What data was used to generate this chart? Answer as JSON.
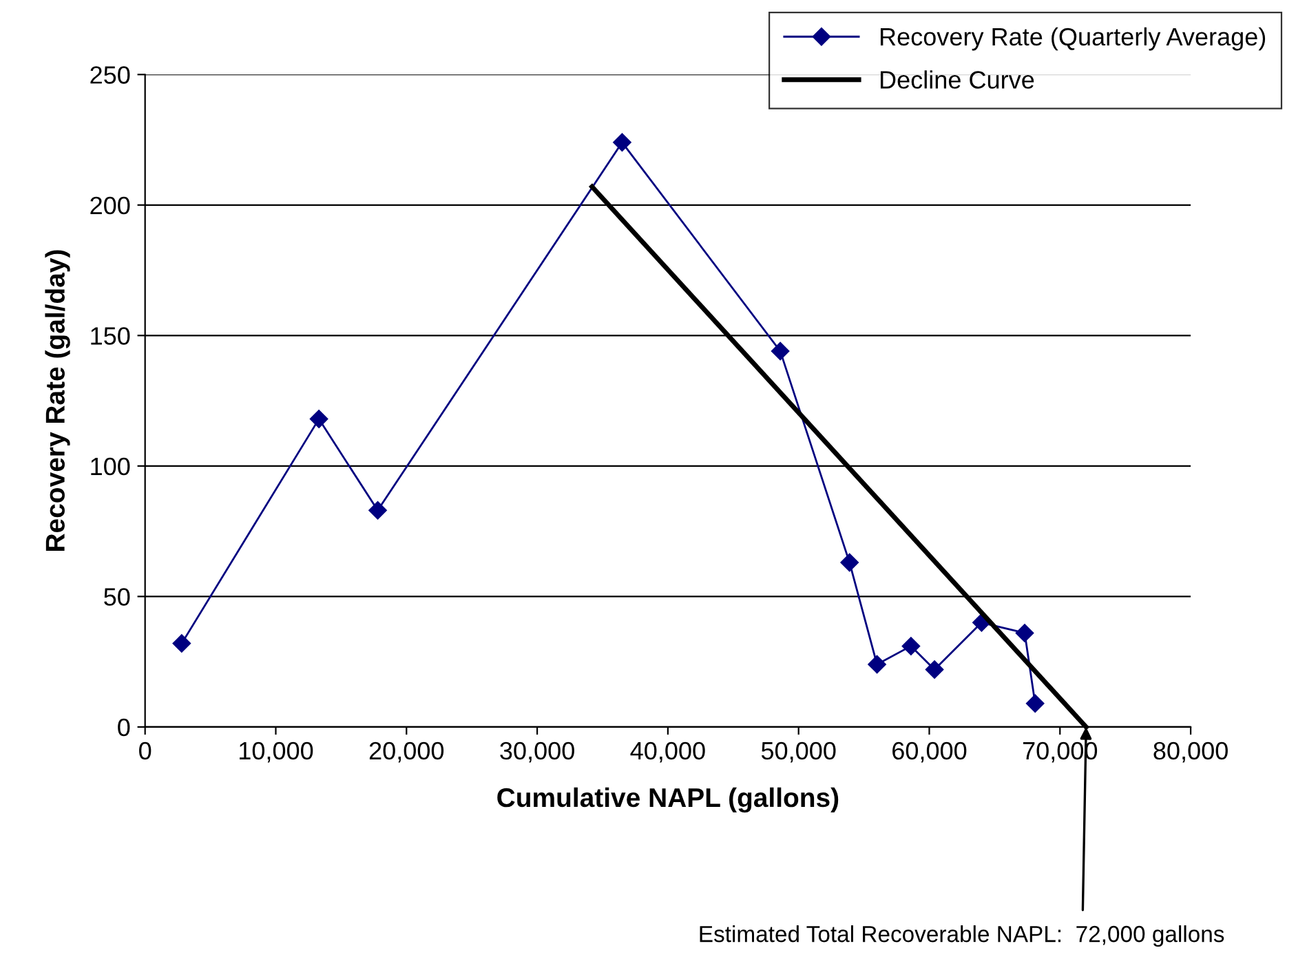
{
  "chart_data": {
    "type": "line",
    "xlabel": "Cumulative NAPL (gallons)",
    "ylabel": "Recovery Rate (gal/day)",
    "series": [
      {
        "name": "Recovery Rate (Quarterly Average)",
        "color": "#000080",
        "marker": "diamond",
        "x": [
          2800,
          13300,
          17800,
          36500,
          48600,
          53900,
          56000,
          58600,
          60400,
          64000,
          67300,
          68100
        ],
        "values": [
          32,
          118,
          83,
          224,
          144,
          63,
          24,
          31,
          22,
          40,
          36,
          9
        ]
      },
      {
        "name": "Decline Curve",
        "color": "#000000",
        "marker": "none",
        "x": [
          34200,
          72000
        ],
        "values": [
          207,
          0
        ]
      }
    ],
    "xlim": [
      0,
      80000
    ],
    "xticks": [
      {
        "value": 0,
        "label": "0"
      },
      {
        "value": 10000,
        "label": "10,000"
      },
      {
        "value": 20000,
        "label": "20,000"
      },
      {
        "value": 30000,
        "label": "30,000"
      },
      {
        "value": 40000,
        "label": "40,000"
      },
      {
        "value": 50000,
        "label": "50,000"
      },
      {
        "value": 60000,
        "label": "60,000"
      },
      {
        "value": 70000,
        "label": "70,000"
      },
      {
        "value": 80000,
        "label": "80,000"
      }
    ],
    "ylim": [
      0,
      250
    ],
    "yticks": [
      0,
      50,
      100,
      150,
      200,
      250
    ],
    "grid": "y",
    "legend": "top right",
    "annotations": [
      {
        "text": "Estimated Total Recoverable NAPL:  72,000 gallons",
        "x": 72000,
        "y": 0
      }
    ]
  }
}
